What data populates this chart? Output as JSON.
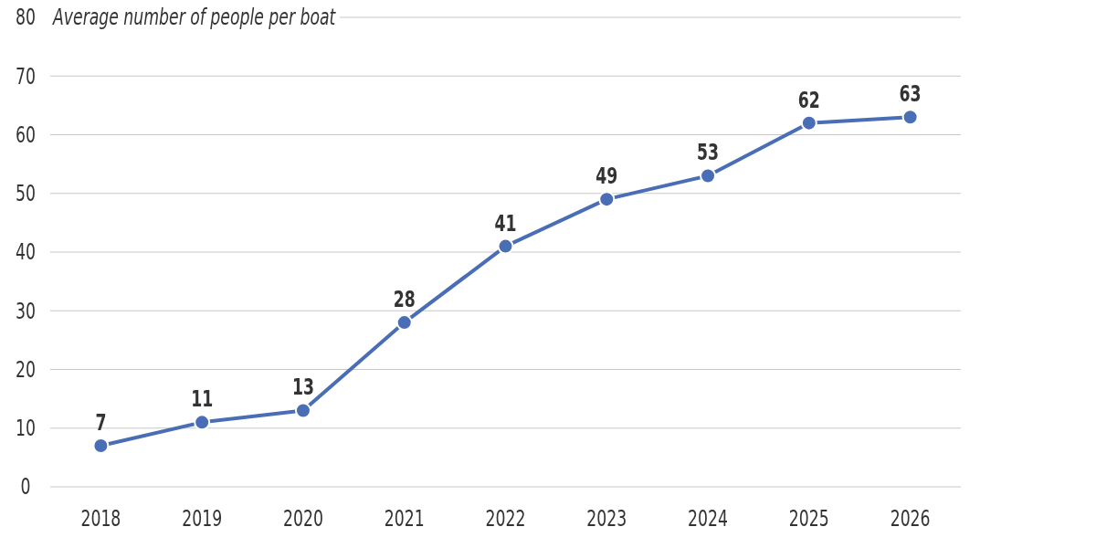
{
  "chart_data": {
    "type": "line",
    "ylabel": "Average number of people per boat",
    "categories": [
      "2018",
      "2019",
      "2020",
      "2021",
      "2022",
      "2023",
      "2024",
      "2025",
      "2026"
    ],
    "series": [
      {
        "color": "#4a6eb5",
        "values": [
          7,
          11,
          13,
          28,
          41,
          49,
          53,
          62,
          63
        ]
      }
    ],
    "ylim": [
      0,
      80
    ],
    "yticks": [
      0,
      10,
      20,
      30,
      40,
      50,
      60,
      70,
      80
    ],
    "grid": "y",
    "data_labels": true,
    "marker": "circle",
    "line_style": "solid"
  }
}
